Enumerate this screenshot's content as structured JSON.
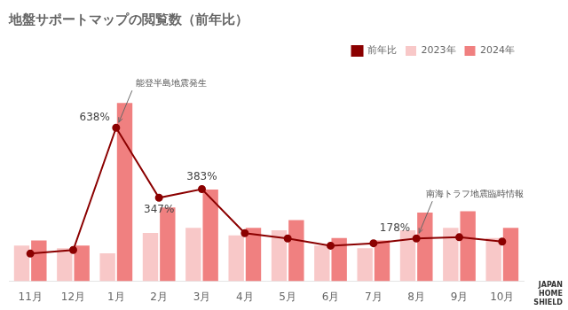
{
  "chart_data": {
    "type": "bar",
    "title": "地盤サポートマップの閲覧数（前年比）",
    "categories": [
      "11月",
      "12月",
      "1月",
      "2月",
      "3月",
      "4月",
      "5月",
      "6月",
      "7月",
      "8月",
      "9月",
      "10月"
    ],
    "series": [
      {
        "name": "2023年",
        "color": "#f8c8c8",
        "values": [
          2.8,
          2.6,
          2.2,
          3.8,
          4.2,
          3.6,
          4.0,
          2.8,
          2.6,
          4.0,
          4.2,
          3.4
        ]
      },
      {
        "name": "2024年",
        "color": "#f08080",
        "values": [
          3.2,
          2.8,
          14.0,
          5.8,
          7.2,
          4.2,
          4.8,
          3.4,
          3.2,
          5.4,
          5.5,
          4.2
        ]
      },
      {
        "name": "前年比",
        "type": "line",
        "color": "#8b0000",
        "marker": "circle",
        "axis": "y2",
        "values": [
          115,
          130,
          638,
          347,
          383,
          200,
          178,
          148,
          158,
          178,
          183,
          165
        ]
      }
    ],
    "ylim": [
      0,
      17
    ],
    "y2lim": [
      0,
      900
    ],
    "grid": false,
    "legend": "upper right",
    "tick_labels": "x",
    "annotations": [
      {
        "text": "638%",
        "x": "1月",
        "y": 638,
        "axis": "y2"
      },
      {
        "text": "能登半島地震発生",
        "x": "1月",
        "y": 638,
        "axis": "y2",
        "arrow": true
      },
      {
        "text": "347%",
        "x": "2月",
        "y": 347,
        "axis": "y2"
      },
      {
        "text": "383%",
        "x": "3月",
        "y": 383,
        "axis": "y2"
      },
      {
        "text": "178%",
        "x": "8月",
        "y": 178,
        "axis": "y2"
      },
      {
        "text": "南海トラフ地震臨時情報",
        "x": "8月",
        "y": 178,
        "axis": "y2",
        "arrow": true
      }
    ],
    "logo_text": [
      "JAPAN",
      "HOME",
      "SHIELD"
    ]
  }
}
